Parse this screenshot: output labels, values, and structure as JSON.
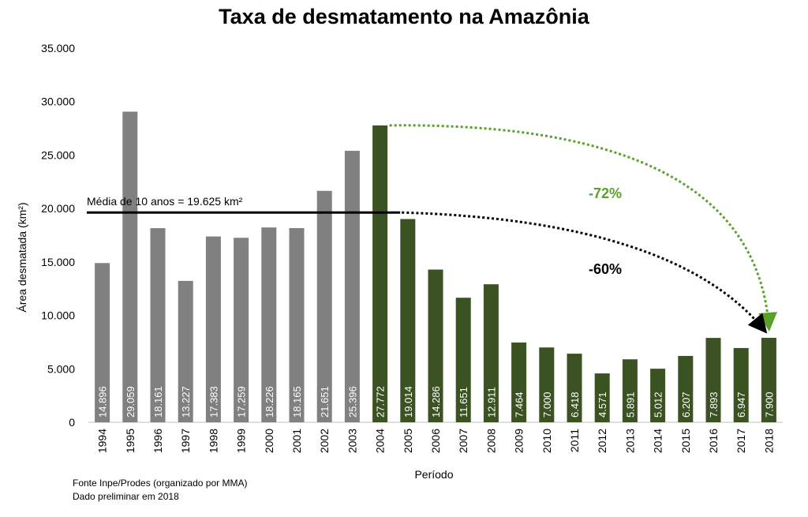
{
  "chart_data": {
    "type": "bar",
    "title": "Taxa de desmatamento na Amazônia",
    "xlabel": "Período",
    "ylabel": "Área desmatada (km²)",
    "categories": [
      "1994",
      "1995",
      "1996",
      "1997",
      "1998",
      "1999",
      "2000",
      "2001",
      "2002",
      "2003",
      "2004",
      "2005",
      "2006",
      "2007",
      "2008",
      "2009",
      "2010",
      "2011",
      "2012",
      "2013",
      "2014",
      "2015",
      "2016",
      "2017",
      "2018"
    ],
    "values": [
      14896,
      29059,
      18161,
      13227,
      17383,
      17259,
      18226,
      18165,
      21651,
      25396,
      27772,
      19014,
      14286,
      11651,
      12911,
      7464,
      7000,
      6418,
      4571,
      5891,
      5012,
      6207,
      7893,
      6947,
      7900
    ],
    "value_labels": [
      "14.896",
      "29.059",
      "18.161",
      "13.227",
      "17.383",
      "17.259",
      "18.226",
      "18.165",
      "21.651",
      "25.396",
      "27.772",
      "19.014",
      "14.286",
      "11.651",
      "12.911",
      "7.464",
      "7.000",
      "6.418",
      "4.571",
      "5.891",
      "5.012",
      "6.207",
      "7.893",
      "6.947",
      "7.900"
    ],
    "ylim": [
      0,
      35000
    ],
    "yticks": [
      0,
      5000,
      10000,
      15000,
      20000,
      25000,
      30000,
      35000
    ],
    "ytick_labels": [
      "0",
      "5.000",
      "10.000",
      "15.000",
      "20.000",
      "25.000",
      "30.000",
      "35.000"
    ],
    "grid": false,
    "colors": {
      "before_2004": "#808080",
      "from_2004": "#3b5323",
      "green_arrow": "#5aa02c",
      "black_arrow": "#000000"
    },
    "highlight_from": "2004",
    "average_line": {
      "label": "Média de 10 anos = 19.625 km²",
      "value": 19625,
      "from": "1994",
      "to": "2004"
    },
    "annotations": [
      {
        "text": "-72%",
        "color": "#5aa02c",
        "from": "2004",
        "to": "2018"
      },
      {
        "text": "-60%",
        "color": "#000000",
        "from": "average_line",
        "to": "2018"
      }
    ]
  },
  "footer": {
    "source": "Fonte Inpe/Prodes (organizado por MMA)",
    "note": "Dado preliminar em 2018"
  }
}
